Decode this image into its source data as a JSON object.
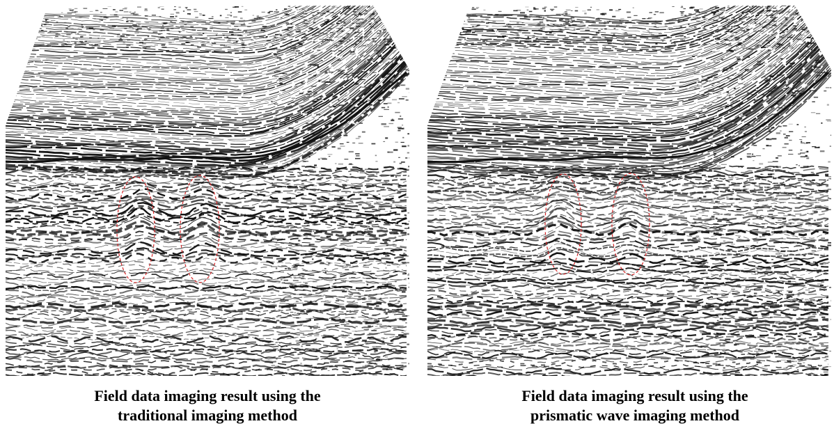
{
  "figure": {
    "panels": [
      {
        "caption_line1": "Field data imaging result using the",
        "caption_line2": "traditional imaging method"
      },
      {
        "caption_line1": "Field data imaging result using the",
        "caption_line2": "prismatic wave imaging method"
      }
    ],
    "colors": {
      "reflector": "#111111",
      "background": "#ffffff",
      "annotation_ellipse": "#d62728"
    }
  }
}
